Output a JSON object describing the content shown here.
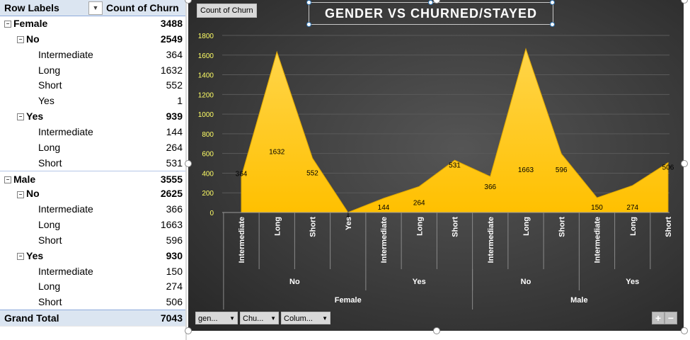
{
  "pivot": {
    "header": {
      "row_labels": "Row Labels",
      "count_label": "Count of Churn"
    },
    "rows": [
      {
        "label": "Female",
        "value": "3488",
        "level": 0,
        "bold": true,
        "toggle": "⊟"
      },
      {
        "label": "No",
        "value": "2549",
        "level": 1,
        "bold": true,
        "toggle": "⊟"
      },
      {
        "label": "Intermediate",
        "value": "364",
        "level": 2,
        "bold": false,
        "toggle": ""
      },
      {
        "label": "Long",
        "value": "1632",
        "level": 2,
        "bold": false,
        "toggle": ""
      },
      {
        "label": "Short",
        "value": "552",
        "level": 2,
        "bold": false,
        "toggle": ""
      },
      {
        "label": "Yes",
        "value": "1",
        "level": 2,
        "bold": false,
        "toggle": ""
      },
      {
        "label": "Yes",
        "value": "939",
        "level": 1,
        "bold": true,
        "toggle": "⊟"
      },
      {
        "label": "Intermediate",
        "value": "144",
        "level": 2,
        "bold": false,
        "toggle": ""
      },
      {
        "label": "Long",
        "value": "264",
        "level": 2,
        "bold": false,
        "toggle": ""
      },
      {
        "label": "Short",
        "value": "531",
        "level": 2,
        "bold": false,
        "toggle": ""
      },
      {
        "label": "Male",
        "value": "3555",
        "level": 0,
        "bold": true,
        "toggle": "⊟"
      },
      {
        "label": "No",
        "value": "2625",
        "level": 1,
        "bold": true,
        "toggle": "⊟"
      },
      {
        "label": "Intermediate",
        "value": "366",
        "level": 2,
        "bold": false,
        "toggle": ""
      },
      {
        "label": "Long",
        "value": "1663",
        "level": 2,
        "bold": false,
        "toggle": ""
      },
      {
        "label": "Short",
        "value": "596",
        "level": 2,
        "bold": false,
        "toggle": ""
      },
      {
        "label": "Yes",
        "value": "930",
        "level": 1,
        "bold": true,
        "toggle": "⊟"
      },
      {
        "label": "Intermediate",
        "value": "150",
        "level": 2,
        "bold": false,
        "toggle": ""
      },
      {
        "label": "Long",
        "value": "274",
        "level": 2,
        "bold": false,
        "toggle": ""
      },
      {
        "label": "Short",
        "value": "506",
        "level": 2,
        "bold": false,
        "toggle": ""
      }
    ],
    "grand_total": {
      "label": "Grand Total",
      "value": "7043"
    }
  },
  "chart": {
    "field_button": "Count of Churn",
    "filters": [
      {
        "label": "gen..."
      },
      {
        "label": "Chu..."
      },
      {
        "label": "Colum..."
      }
    ],
    "zoom": {
      "plus": "+",
      "minus": "−"
    }
  },
  "chart_data": {
    "type": "area",
    "title": "GENDER VS CHURNED/STAYED",
    "xlabel": "",
    "ylabel": "",
    "ylim": [
      0,
      1800
    ],
    "yticks": [
      0,
      200,
      400,
      600,
      800,
      1000,
      1200,
      1400,
      1600,
      1800
    ],
    "grid": true,
    "legend": "none",
    "area_color": "#ffc000",
    "categories": [
      "Intermediate",
      "Long",
      "Short",
      "Yes",
      "Intermediate",
      "Long",
      "Short",
      "Intermediate",
      "Long",
      "Short",
      "Intermediate",
      "Long",
      "Short"
    ],
    "values": [
      364,
      1632,
      552,
      1,
      144,
      264,
      531,
      366,
      1663,
      596,
      150,
      274,
      506
    ],
    "groups_level2": [
      {
        "label": "No",
        "span": 4
      },
      {
        "label": "Yes",
        "span": 3
      },
      {
        "label": "No",
        "span": 3
      },
      {
        "label": "Yes",
        "span": 3
      }
    ],
    "groups_level1": [
      {
        "label": "Female",
        "span": 7
      },
      {
        "label": "Male",
        "span": 6
      }
    ]
  }
}
